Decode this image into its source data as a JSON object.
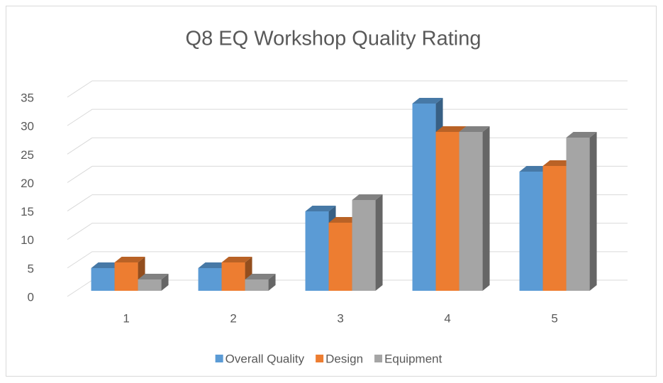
{
  "chart_data": {
    "type": "bar3d",
    "title": "Q8 EQ Workshop Quality Rating",
    "categories": [
      "1",
      "2",
      "3",
      "4",
      "5"
    ],
    "series": [
      {
        "name": "Overall Quality",
        "color": "#5b9bd5",
        "values": [
          4,
          4,
          14,
          33,
          21
        ]
      },
      {
        "name": "Design",
        "color": "#ed7d31",
        "values": [
          5,
          5,
          12,
          28,
          22
        ]
      },
      {
        "name": "Equipment",
        "color": "#a5a5a5",
        "values": [
          2,
          2,
          16,
          28,
          27
        ]
      }
    ],
    "ylim": [
      0,
      35
    ],
    "yticks": [
      0,
      5,
      10,
      15,
      20,
      25,
      30,
      35
    ],
    "grid": true,
    "legend": "bottom"
  }
}
